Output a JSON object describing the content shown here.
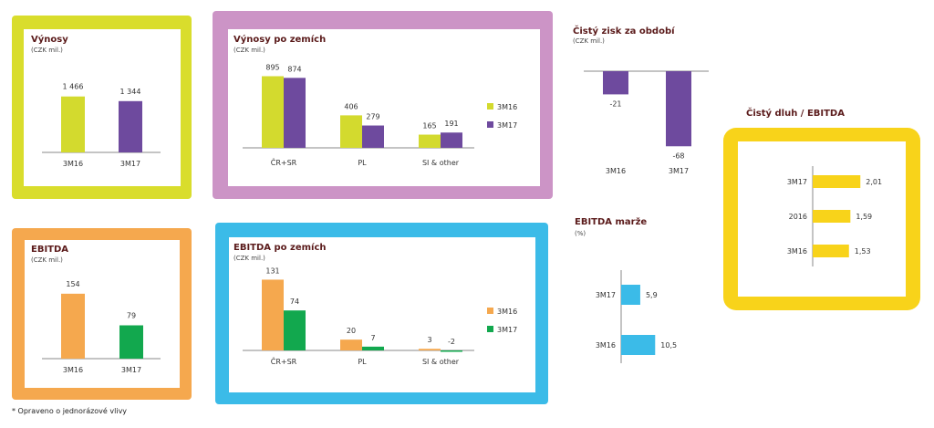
{
  "footnote": "* Opraveno o jednorázové vlivy",
  "colors": {
    "lime": "#d3da2e",
    "purple": "#6e4a9e",
    "orange": "#f5a84e",
    "green": "#12a84e",
    "blue": "#3bbbe8",
    "yellow": "#f8d31a",
    "pink": "#cc94c6",
    "frame_lime": "#d9dd2c",
    "frame_pink": "#cc94c6",
    "frame_orange": "#f5a84e",
    "frame_blue": "#3bbbe8",
    "frame_yellow": "#f8d31a"
  },
  "chart_data": [
    {
      "id": "vynosy",
      "type": "bar",
      "title": "Výnosy",
      "unit": "(CZK mil.)",
      "categories": [
        "3M16",
        "3M17"
      ],
      "values": [
        1466,
        1344
      ],
      "labels": [
        "1 466",
        "1 344"
      ],
      "colors": [
        "#d3da2e",
        "#6e4a9e"
      ]
    },
    {
      "id": "vynosy-zeme",
      "type": "bar",
      "title": "Výnosy po zemích",
      "unit": "(CZK mil.)",
      "categories": [
        "ČR+SR",
        "PL",
        "SI & other"
      ],
      "series": [
        {
          "name": "3M16",
          "color": "#d3da2e",
          "values": [
            895,
            406,
            165
          ]
        },
        {
          "name": "3M17",
          "color": "#6e4a9e",
          "values": [
            874,
            279,
            191
          ]
        }
      ]
    },
    {
      "id": "zisk",
      "type": "bar",
      "title": "Čistý zisk za období",
      "unit": "(CZK mil.)",
      "categories": [
        "3M16",
        "3M17"
      ],
      "values": [
        -21,
        -68
      ],
      "colors": [
        "#6e4a9e",
        "#6e4a9e"
      ]
    },
    {
      "id": "dluh",
      "type": "bar",
      "title": "Čistý dluh / EBITDA",
      "categories": [
        "3M17",
        "2016",
        "3M16"
      ],
      "values": [
        2.01,
        1.59,
        1.53
      ],
      "labels": [
        "2,01",
        "1,59",
        "1,53"
      ],
      "colors": [
        "#f8d31a",
        "#f8d31a",
        "#f8d31a"
      ]
    },
    {
      "id": "ebitda",
      "type": "bar",
      "title": "EBITDA",
      "unit": "(CZK mil.)",
      "categories": [
        "3M16",
        "3M17"
      ],
      "values": [
        154,
        79
      ],
      "colors": [
        "#f5a84e",
        "#12a84e"
      ]
    },
    {
      "id": "ebitda-zeme",
      "type": "bar",
      "title": "EBITDA po zemích",
      "unit": "(CZK mil.)",
      "categories": [
        "ČR+SR",
        "PL",
        "SI & other"
      ],
      "series": [
        {
          "name": "3M16",
          "color": "#f5a84e",
          "values": [
            131,
            20,
            3
          ]
        },
        {
          "name": "3M17",
          "color": "#12a84e",
          "values": [
            74,
            7,
            -2
          ]
        }
      ]
    },
    {
      "id": "marze",
      "type": "bar",
      "title": "EBITDA marže",
      "unit": "(%)",
      "categories": [
        "3M17",
        "3M16"
      ],
      "values": [
        5.9,
        10.5
      ],
      "labels": [
        "5,9",
        "10,5"
      ],
      "colors": [
        "#3bbbe8",
        "#3bbbe8"
      ]
    }
  ]
}
